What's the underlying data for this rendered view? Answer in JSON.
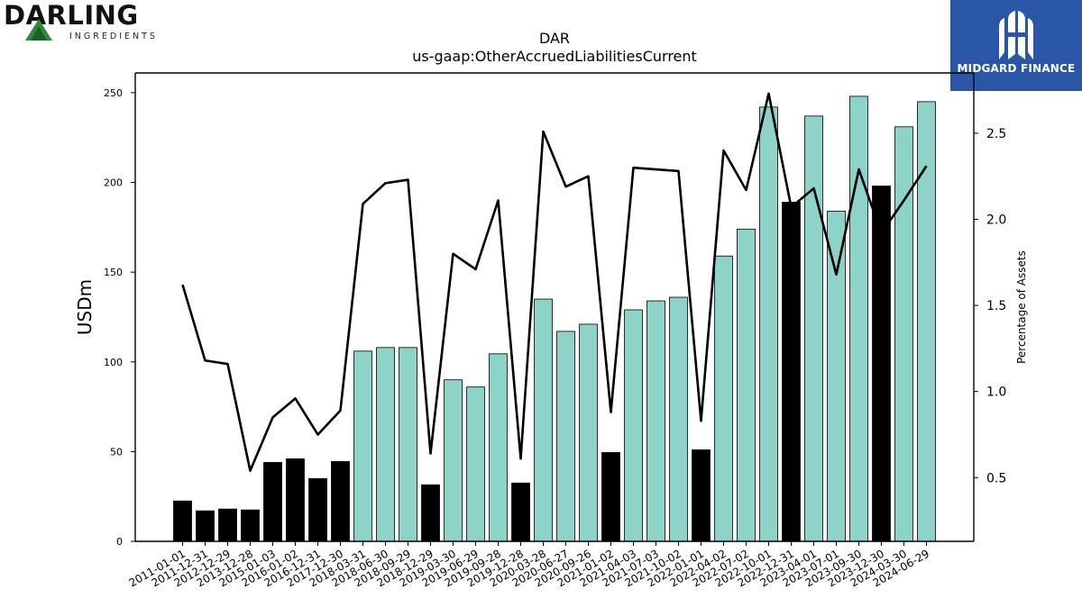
{
  "logos": {
    "left_brand": "DARLING",
    "left_sub": "INGREDIENTS",
    "right_brand": "MIDGARD FINANCE"
  },
  "colors": {
    "bar_default": "#8dd3c7",
    "bar_highlight": "#000000",
    "line": "#000000",
    "right_logo_bg": "#2a56a8",
    "left_logo_green": "#2e8b3a"
  },
  "chart_data": {
    "type": "bar",
    "title": "DAR",
    "subtitle": "us-gaap:OtherAccruedLiabilitiesCurrent",
    "ylabel": "USDm",
    "y2label": "Percentage of Assets",
    "ylim": [
      0,
      261
    ],
    "y2lim": [
      0.13,
      2.85
    ],
    "yticks": [
      0,
      50,
      100,
      150,
      200,
      250
    ],
    "y2ticks": [
      0.5,
      1.0,
      1.5,
      2.0,
      2.5
    ],
    "categories": [
      "2011-01-01",
      "2011-12-31",
      "2012-12-29",
      "2013-12-28",
      "2015-01-03",
      "2016-01-02",
      "2016-12-31",
      "2017-12-30",
      "2018-03-31",
      "2018-06-30",
      "2018-09-29",
      "2018-12-29",
      "2019-03-30",
      "2019-06-29",
      "2019-09-28",
      "2019-12-28",
      "2020-03-28",
      "2020-06-27",
      "2020-09-26",
      "2021-01-02",
      "2021-04-03",
      "2021-07-03",
      "2021-10-02",
      "2022-01-01",
      "2022-04-02",
      "2022-07-02",
      "2022-10-01",
      "2022-12-31",
      "2023-04-01",
      "2023-07-01",
      "2023-09-30",
      "2023-12-30",
      "2024-03-30",
      "2024-06-29"
    ],
    "series": [
      {
        "kind": "bar",
        "values": [
          22.5,
          17,
          18,
          17.5,
          44,
          46,
          35,
          44.5,
          106,
          108,
          108,
          31.5,
          90,
          86,
          104.5,
          32.5,
          135,
          117,
          121,
          49.5,
          129,
          134,
          136,
          51,
          159,
          174,
          242,
          189,
          237,
          184,
          248,
          198,
          231,
          245
        ],
        "highlight": [
          true,
          true,
          true,
          true,
          true,
          true,
          true,
          true,
          false,
          false,
          false,
          true,
          false,
          false,
          false,
          true,
          false,
          false,
          false,
          true,
          false,
          false,
          false,
          true,
          false,
          false,
          false,
          true,
          false,
          false,
          false,
          true,
          false,
          false
        ]
      },
      {
        "kind": "line",
        "axis": "right",
        "values": [
          1.62,
          1.18,
          1.16,
          0.54,
          0.85,
          0.96,
          0.75,
          0.89,
          2.09,
          2.21,
          2.23,
          0.64,
          1.8,
          1.71,
          2.11,
          0.61,
          2.51,
          2.19,
          2.25,
          0.88,
          2.3,
          2.29,
          2.28,
          0.83,
          2.4,
          2.17,
          2.73,
          2.07,
          2.18,
          1.68,
          2.29,
          1.92,
          2.11,
          2.31
        ]
      }
    ],
    "grid": false,
    "legend": "none"
  }
}
